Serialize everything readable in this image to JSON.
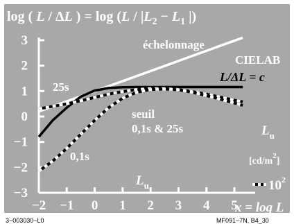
{
  "chart_data": {
    "type": "line",
    "title": "log (L / ΔL) = log (L / |L2 − L1 |)",
    "xlabel": "x = log L",
    "x_axis_word": "L",
    "x_axis_sub": "u",
    "xlim": [
      -2,
      5.5
    ],
    "ylim": [
      -3,
      3.5
    ],
    "x_ticks": [
      -2,
      -1,
      0,
      1,
      2,
      3,
      4,
      5
    ],
    "y_ticks": [
      3,
      2,
      1,
      0,
      -1,
      -2,
      -3
    ],
    "x_tick_labels": [
      "−2",
      "−1",
      "0",
      "1",
      "2",
      "3",
      "4",
      "5"
    ],
    "y_tick_labels": [
      "3",
      "2",
      "1",
      "0",
      "−1",
      "−2",
      "−3"
    ],
    "grid": false,
    "colors": {
      "background": "#a8a8a8",
      "white": "#ffffff",
      "black": "#000000"
    },
    "series": [
      {
        "name": "échelonnage",
        "style": "white-solid",
        "x": [
          -2,
          5.3
        ],
        "y": [
          0.2,
          3.1
        ]
      },
      {
        "name": "CIELAB",
        "style": "black-solid",
        "x": [
          -2,
          -1.5,
          -1,
          -0.5,
          0,
          0.5,
          1,
          1.5,
          2,
          2.5,
          3,
          3.5,
          4,
          4.5,
          5,
          5.3
        ],
        "y": [
          -0.8,
          -0.15,
          0.35,
          0.78,
          1.02,
          1.12,
          1.15,
          1.16,
          1.16,
          1.16,
          1.16,
          1.16,
          1.16,
          1.16,
          1.16,
          1.16
        ]
      },
      {
        "name": "25s",
        "style": "dashed",
        "x": [
          -2,
          -1.5,
          -1,
          -0.5,
          0,
          0.5,
          1,
          1.5,
          2,
          2.5,
          3,
          3.5,
          4,
          4.5,
          5,
          5.3
        ],
        "y": [
          0.3,
          0.4,
          0.5,
          0.62,
          0.75,
          0.88,
          0.98,
          1.06,
          1.1,
          1.1,
          1.06,
          0.98,
          0.88,
          0.76,
          0.64,
          0.58
        ]
      },
      {
        "name": "0,1s",
        "style": "dashed",
        "x": [
          -2,
          -1.5,
          -1,
          -0.5,
          0,
          0.5,
          1,
          1.5,
          2,
          2.5,
          3,
          3.5,
          4,
          4.5,
          5,
          5.3
        ],
        "y": [
          -2.15,
          -1.75,
          -1.25,
          -0.7,
          -0.15,
          0.35,
          0.72,
          0.95,
          1.06,
          1.08,
          1.05,
          0.95,
          0.82,
          0.68,
          0.53,
          0.44
        ]
      }
    ],
    "annotations": {
      "echelonnage": "échelonnage",
      "cielab": "CIELAB",
      "ratio": "L/ΔL = c",
      "s25": "25s",
      "seuil": "seuil",
      "seuil_times": "0,1s & 25s",
      "s01": "0,1s",
      "lu_word": "L",
      "lu_sub": "u",
      "lu_unit": "[cd/m",
      "lu_unit_exp": "2",
      "lu_unit_end": "]",
      "legend_value": "10",
      "legend_exp": "2"
    },
    "footer_left": "3−003030−L0",
    "footer_right": "MF091−7N, B4_30"
  }
}
